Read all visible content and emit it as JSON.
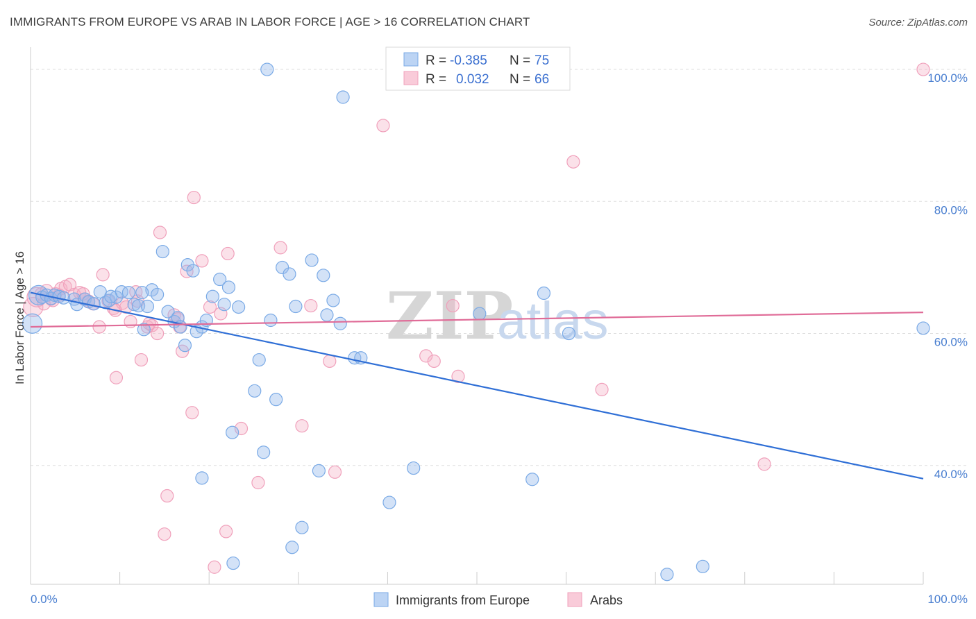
{
  "title": "IMMIGRANTS FROM EUROPE VS ARAB IN LABOR FORCE | AGE > 16 CORRELATION CHART",
  "source": "Source: ZipAtlas.com",
  "watermark": {
    "zip": "ZIP",
    "atlas": "atlas"
  },
  "colors": {
    "blue": "#7aaae6",
    "blue_line": "#2f6fd6",
    "pink": "#f0a0bb",
    "pink_line": "#e06c98",
    "grid": "#dddddd"
  },
  "legend": {
    "rows": [
      {
        "r_label": "R =",
        "r_value": "-0.385",
        "n_label": "N =",
        "n_value": "75"
      },
      {
        "r_label": "R =",
        "r_value": "0.032",
        "n_label": "N =",
        "n_value": "66"
      }
    ]
  },
  "bottom_legend": [
    "Immigrants from Europe",
    "Arabs"
  ],
  "chart_data": {
    "type": "scatter",
    "title": "IMMIGRANTS FROM EUROPE VS ARAB IN LABOR FORCE | AGE > 16 CORRELATION CHART",
    "xlabel": "",
    "ylabel": "In Labor Force | Age > 16",
    "xlim": [
      0,
      100
    ],
    "ylim": [
      22,
      104
    ],
    "x_ticks_labels": [
      "0.0%",
      "100.0%"
    ],
    "y_ticks": [
      40,
      60,
      80,
      100
    ],
    "y_tick_labels": [
      "40.0%",
      "60.0%",
      "80.0%",
      "100.0%"
    ],
    "grid": "horizontal dashed",
    "legend_position": "top-center",
    "series": [
      {
        "name": "Immigrants from Europe",
        "r": -0.385,
        "n": 75,
        "trend": [
          [
            0,
            66.2
          ],
          [
            100,
            38.0
          ]
        ],
        "points": [
          [
            0.2,
            61.5
          ],
          [
            0.9,
            65.8
          ],
          [
            1.3,
            65.5
          ],
          [
            1.8,
            65.8
          ],
          [
            2.3,
            65.3
          ],
          [
            2.7,
            65.8
          ],
          [
            3.2,
            65.6
          ],
          [
            3.7,
            65.4
          ],
          [
            4.9,
            65.2
          ],
          [
            5.2,
            64.4
          ],
          [
            6.1,
            65.2
          ],
          [
            6.5,
            64.8
          ],
          [
            7.1,
            64.5
          ],
          [
            7.8,
            66.3
          ],
          [
            8.4,
            64.7
          ],
          [
            8.8,
            65.0
          ],
          [
            9.6,
            65.5
          ],
          [
            10.2,
            66.3
          ],
          [
            11.0,
            66.2
          ],
          [
            11.6,
            64.4
          ],
          [
            12.1,
            64.2
          ],
          [
            12.7,
            60.6
          ],
          [
            13.1,
            64.1
          ],
          [
            13.6,
            66.6
          ],
          [
            14.2,
            65.9
          ],
          [
            14.8,
            72.4
          ],
          [
            15.4,
            63.3
          ],
          [
            16.1,
            61.8
          ],
          [
            16.5,
            62.4
          ],
          [
            16.8,
            61.0
          ],
          [
            17.3,
            58.2
          ],
          [
            17.6,
            70.4
          ],
          [
            18.2,
            69.5
          ],
          [
            18.6,
            60.3
          ],
          [
            19.2,
            61.0
          ],
          [
            19.7,
            62.0
          ],
          [
            20.4,
            65.6
          ],
          [
            21.2,
            68.2
          ],
          [
            21.7,
            64.4
          ],
          [
            22.2,
            67.0
          ],
          [
            23.3,
            64.0
          ],
          [
            25.1,
            51.3
          ],
          [
            25.6,
            56.0
          ],
          [
            26.1,
            42.0
          ],
          [
            26.5,
            100.0
          ],
          [
            26.9,
            62.0
          ],
          [
            27.5,
            50.0
          ],
          [
            28.2,
            70.0
          ],
          [
            29.0,
            69.0
          ],
          [
            29.7,
            64.1
          ],
          [
            30.4,
            30.6
          ],
          [
            31.5,
            71.1
          ],
          [
            32.3,
            39.2
          ],
          [
            32.8,
            68.8
          ],
          [
            33.2,
            62.8
          ],
          [
            33.9,
            65.0
          ],
          [
            34.7,
            61.5
          ],
          [
            35.0,
            95.8
          ],
          [
            36.3,
            56.3
          ],
          [
            37.0,
            56.3
          ],
          [
            40.2,
            34.4
          ],
          [
            42.9,
            39.6
          ],
          [
            50.3,
            63.0
          ],
          [
            56.2,
            37.9
          ],
          [
            57.5,
            66.1
          ],
          [
            60.3,
            60.0
          ],
          [
            71.3,
            23.5
          ],
          [
            75.3,
            24.7
          ],
          [
            100.0,
            60.8
          ],
          [
            22.7,
            25.2
          ],
          [
            22.6,
            45.0
          ],
          [
            19.2,
            38.1
          ],
          [
            29.3,
            27.6
          ],
          [
            12.5,
            66.2
          ],
          [
            9.0,
            65.6
          ]
        ]
      },
      {
        "name": "Arabs",
        "r": 0.032,
        "n": 66,
        "trend": [
          [
            0,
            61.0
          ],
          [
            100,
            63.2
          ]
        ],
        "points": [
          [
            0.3,
            64.0
          ],
          [
            0.7,
            65.5
          ],
          [
            1.2,
            66.0
          ],
          [
            1.8,
            66.5
          ],
          [
            2.3,
            65.2
          ],
          [
            2.8,
            66.0
          ],
          [
            3.4,
            66.8
          ],
          [
            3.9,
            67.1
          ],
          [
            4.4,
            67.4
          ],
          [
            4.9,
            65.9
          ],
          [
            5.5,
            66.2
          ],
          [
            6.0,
            65.2
          ],
          [
            6.5,
            64.9
          ],
          [
            7.0,
            64.5
          ],
          [
            7.7,
            61.0
          ],
          [
            8.1,
            68.9
          ],
          [
            8.7,
            64.9
          ],
          [
            9.3,
            63.8
          ],
          [
            9.6,
            53.3
          ],
          [
            10.3,
            64.6
          ],
          [
            10.7,
            64.0
          ],
          [
            11.2,
            61.8
          ],
          [
            11.8,
            66.3
          ],
          [
            12.4,
            56.0
          ],
          [
            13.1,
            61.0
          ],
          [
            13.6,
            61.2
          ],
          [
            14.2,
            60.0
          ],
          [
            14.5,
            75.3
          ],
          [
            15.3,
            35.4
          ],
          [
            15.0,
            29.6
          ],
          [
            16.1,
            62.8
          ],
          [
            16.5,
            62.2
          ],
          [
            17.0,
            57.3
          ],
          [
            17.5,
            69.4
          ],
          [
            18.1,
            48.0
          ],
          [
            18.3,
            80.6
          ],
          [
            19.2,
            71.0
          ],
          [
            20.1,
            64.0
          ],
          [
            20.6,
            24.6
          ],
          [
            21.3,
            63.0
          ],
          [
            21.9,
            30.0
          ],
          [
            22.1,
            72.1
          ],
          [
            23.6,
            45.6
          ],
          [
            25.5,
            37.4
          ],
          [
            28.0,
            73.0
          ],
          [
            30.4,
            46.0
          ],
          [
            31.4,
            64.2
          ],
          [
            33.5,
            55.8
          ],
          [
            34.1,
            39.0
          ],
          [
            39.5,
            91.5
          ],
          [
            44.3,
            56.6
          ],
          [
            45.2,
            55.8
          ],
          [
            47.3,
            64.2
          ],
          [
            47.9,
            53.5
          ],
          [
            60.8,
            86.0
          ],
          [
            64.0,
            51.5
          ],
          [
            82.2,
            40.2
          ],
          [
            100.0,
            100.0
          ],
          [
            2.5,
            65.0
          ],
          [
            5.9,
            66.0
          ],
          [
            13.3,
            61.5
          ],
          [
            16.7,
            61.0
          ],
          [
            12.0,
            64.9
          ],
          [
            9.5,
            63.5
          ],
          [
            1.5,
            64.5
          ],
          [
            3.2,
            65.8
          ]
        ]
      }
    ]
  }
}
